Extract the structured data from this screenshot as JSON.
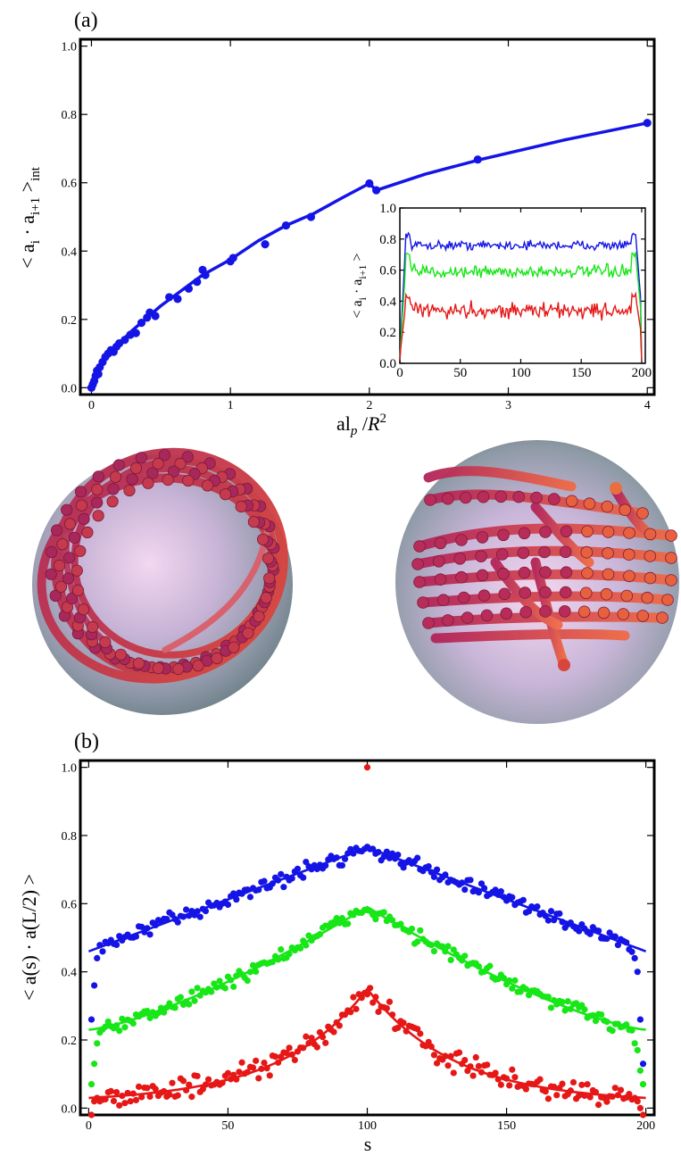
{
  "colors": {
    "blue": "#1414e6",
    "green": "#17e617",
    "red": "#e61717",
    "frame": "#000000"
  },
  "chart_data": [
    {
      "panel": "(a)",
      "type": "line",
      "xlabel_main": "al",
      "xlabel_sub": "p",
      "xlabel_mid": " /",
      "xlabel_R": "R",
      "xlabel_sup": "2",
      "ylabel_main": "< a",
      "ylabel_sub1": "i",
      "ylabel_dot": " · a",
      "ylabel_sub2": "i+1",
      "ylabel_close": " >",
      "ylabel_sub3": "int",
      "xlim": [
        -0.08,
        4.05
      ],
      "ylim": [
        -0.02,
        1.02
      ],
      "xticks": [
        0,
        1,
        2,
        3,
        4
      ],
      "xtick_labels": [
        "0",
        "1",
        "2",
        "3",
        "4"
      ],
      "yticks": [
        0.0,
        0.2,
        0.4,
        0.6,
        0.8,
        1.0
      ],
      "ytick_labels": [
        "0.0",
        "0.2",
        "0.4",
        "0.6",
        "0.8",
        "1.0"
      ],
      "line": {
        "x": [
          0,
          0.01,
          0.03,
          0.06,
          0.1,
          0.15,
          0.2,
          0.25,
          0.3,
          0.4,
          0.5,
          0.6,
          0.7,
          0.8,
          1.0,
          1.2,
          1.4,
          1.6,
          1.8,
          2.0,
          2.05,
          2.4,
          2.8,
          3.4,
          4.0
        ],
        "y": [
          0,
          0.015,
          0.04,
          0.065,
          0.09,
          0.11,
          0.13,
          0.15,
          0.17,
          0.205,
          0.24,
          0.27,
          0.3,
          0.33,
          0.375,
          0.43,
          0.475,
          0.51,
          0.555,
          0.598,
          0.578,
          0.625,
          0.668,
          0.725,
          0.775
        ]
      },
      "points": {
        "x": [
          0,
          0.01,
          0.02,
          0.03,
          0.04,
          0.05,
          0.06,
          0.08,
          0.1,
          0.12,
          0.14,
          0.16,
          0.18,
          0.2,
          0.24,
          0.28,
          0.32,
          0.36,
          0.4,
          0.42,
          0.46,
          0.56,
          0.62,
          0.7,
          0.76,
          0.8,
          0.82,
          1.0,
          1.02,
          1.25,
          1.4,
          1.58,
          2.0,
          2.05,
          2.78,
          4.0
        ],
        "y": [
          0,
          0.01,
          0.02,
          0.035,
          0.05,
          0.04,
          0.06,
          0.075,
          0.09,
          0.1,
          0.11,
          0.105,
          0.12,
          0.13,
          0.14,
          0.155,
          0.16,
          0.19,
          0.205,
          0.22,
          0.21,
          0.265,
          0.26,
          0.29,
          0.31,
          0.345,
          0.33,
          0.37,
          0.38,
          0.42,
          0.475,
          0.5,
          0.598,
          0.578,
          0.668,
          0.775
        ]
      },
      "inset": {
        "type": "line",
        "ylabel_main": "< a",
        "ylabel_sub1": "i",
        "ylabel_dot": " · a",
        "ylabel_sub2": "i+1",
        "ylabel_close": " >",
        "xlim": [
          0,
          203
        ],
        "ylim": [
          0,
          1.0
        ],
        "xticks": [
          0,
          50,
          100,
          150,
          200
        ],
        "xtick_labels": [
          "0",
          "50",
          "100",
          "150",
          "200"
        ],
        "yticks": [
          0.0,
          0.2,
          0.4,
          0.6,
          0.8,
          1.0
        ],
        "ytick_labels": [
          "0.0",
          "0.2",
          "0.4",
          "0.6",
          "0.8",
          "1.0"
        ],
        "series": [
          {
            "color": "blue",
            "plateau": 0.76,
            "edge_peak": 0.83,
            "noise": 0.025
          },
          {
            "color": "green",
            "plateau": 0.59,
            "edge_peak": 0.7,
            "noise": 0.035
          },
          {
            "color": "red",
            "plateau": 0.34,
            "edge_peak": 0.43,
            "noise": 0.045
          }
        ]
      }
    },
    {
      "panel": "(b)",
      "type": "scatter",
      "xlabel": "s",
      "ylabel": "< a(s) · a(L/2) >",
      "xlim": [
        -3,
        203
      ],
      "ylim": [
        -0.02,
        1.02
      ],
      "xticks": [
        0,
        50,
        100,
        150,
        200
      ],
      "xtick_labels": [
        "0",
        "50",
        "100",
        "150",
        "200"
      ],
      "yticks": [
        0.0,
        0.2,
        0.4,
        0.6,
        0.8,
        1.0
      ],
      "ytick_labels": [
        "0.0",
        "0.2",
        "0.4",
        "0.6",
        "0.8",
        "1.0"
      ],
      "center_point": {
        "x": 100,
        "y": 1.0,
        "color": "red"
      },
      "series": [
        {
          "color": "blue",
          "fit_edge": 0.46,
          "fit_peak": 0.765,
          "curve": "linear",
          "noise": 0.018,
          "end_drop": [
            0.26,
            0.36,
            0.44,
            0.4,
            0.26,
            0.13
          ]
        },
        {
          "color": "green",
          "fit_edge": 0.23,
          "fit_peak": 0.59,
          "curve": "convex",
          "noise": 0.02,
          "end_drop": [
            0.07,
            0.13,
            0.19,
            0.17,
            0.11,
            0.07
          ]
        },
        {
          "color": "red",
          "fit_edge": 0.03,
          "fit_peak": 0.35,
          "curve": "exp",
          "noise": 0.028,
          "end_drop": [
            -0.02,
            0.02,
            0.03,
            0.02,
            0.0,
            -0.02
          ]
        }
      ]
    }
  ]
}
